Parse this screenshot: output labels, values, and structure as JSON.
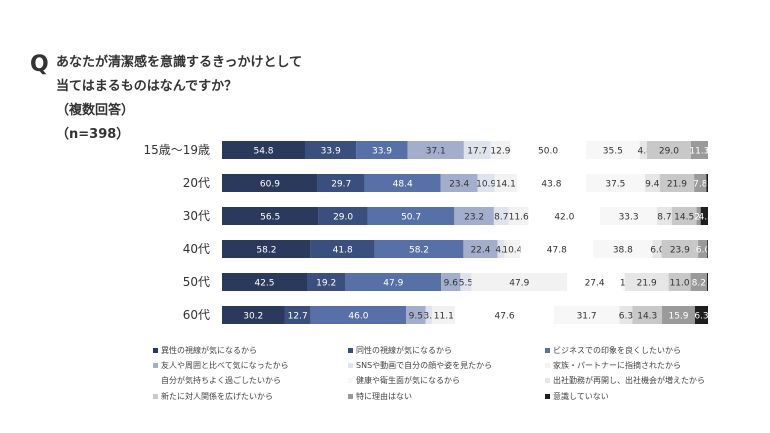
{
  "question": {
    "mark": "Q",
    "line1": "あなたが清潔感を意識するきっかけとして",
    "line2": "当てはまるものはなんですか？",
    "line3": "（複数回答）",
    "line4": "（n=398）"
  },
  "chart_data": {
    "type": "bar",
    "orientation": "horizontal",
    "stacked": true,
    "categories": [
      "15歳〜19歳",
      "20代",
      "30代",
      "40代",
      "50代",
      "60代"
    ],
    "series": [
      {
        "name": "異性の視線が気になるから",
        "color": "#2b3a5c",
        "label_color": "#ffffff",
        "values": [
          54.8,
          60.9,
          56.5,
          58.2,
          42.5,
          30.2
        ]
      },
      {
        "name": "同性の視線が気になるから",
        "color": "#3b4f7e",
        "label_color": "#ffffff",
        "values": [
          33.9,
          29.7,
          29.0,
          41.8,
          19.2,
          12.7
        ]
      },
      {
        "name": "ビジネスでの印象を良くしたいから",
        "color": "#5870a8",
        "label_color": "#ffffff",
        "values": [
          33.9,
          48.4,
          50.7,
          58.2,
          47.9,
          46.0
        ]
      },
      {
        "name": "友人や周囲と比べて気になったから",
        "color": "#a3aecd",
        "label_color": "#333333",
        "values": [
          37.1,
          23.4,
          23.2,
          22.4,
          9.6,
          9.5
        ]
      },
      {
        "name": "SNSや動画で自分の顔や姿を見たから",
        "color": "#dfe3ee",
        "label_color": "#333333",
        "values": [
          17.7,
          10.9,
          8.7,
          4.5,
          5.5,
          3.2
        ]
      },
      {
        "name": "家族・パートナーに指摘されたから",
        "color": "#f2f2f2",
        "label_color": "#333333",
        "values": [
          12.9,
          14.1,
          11.6,
          10.4,
          47.9,
          11.1
        ]
      },
      {
        "name": "自分が気持ちよく過ごしたいから",
        "color": "#ffffff",
        "label_color": "#333333",
        "values": [
          50.0,
          43.8,
          42.0,
          47.8,
          27.4,
          47.6
        ]
      },
      {
        "name": "健康や衛生面が気になるから",
        "color": "#f7f7f7",
        "label_color": "#333333",
        "values": [
          35.5,
          37.5,
          33.3,
          38.8,
          1.4,
          31.7
        ]
      },
      {
        "name": "出社勤務が再開し、出社機会が増えたから",
        "color": "#e6e6e6",
        "label_color": "#333333",
        "values": [
          4.8,
          9.4,
          8.7,
          6.0,
          21.9,
          6.3
        ]
      },
      {
        "name": "新たに対人関係を広げたいから",
        "color": "#c8c8c8",
        "label_color": "#333333",
        "values": [
          29.0,
          21.9,
          14.5,
          23.9,
          11.0,
          14.3
        ]
      },
      {
        "name": "特に理由はない",
        "color": "#9a9a9a",
        "label_color": "#ffffff",
        "values": [
          11.3,
          7.8,
          2.4,
          6.0,
          8.2,
          15.9
        ]
      },
      {
        "name": "意識していない",
        "color": "#1e1e1e",
        "label_color": "#ffffff",
        "values": [
          0.0,
          1.0,
          4.3,
          0.5,
          0.5,
          6.3
        ]
      }
    ],
    "value_labels": [
      [
        "54.8",
        "33.9",
        "33.9",
        "37.1",
        "17.7",
        "12.9",
        "50.0",
        "35.5",
        "4.8",
        "29.0",
        "11.3",
        "0.0"
      ],
      [
        "60.9",
        "29.7",
        "48.4",
        "23.4",
        "10.9",
        "14.1",
        "43.8",
        "37.5",
        "9.4",
        "21.9",
        "7.8",
        "1"
      ],
      [
        "56.5",
        "29.0",
        "50.7",
        "23.2",
        "8.7",
        "11.6",
        "42.0",
        "33.3",
        "8.7",
        "14.5",
        "2.4",
        "4.3"
      ],
      [
        "58.2",
        "41.8",
        "58.2",
        "22.4",
        "4.5",
        "10.4",
        "47.8",
        "38.8",
        "6.0",
        "23.9",
        "6.0",
        ""
      ],
      [
        "42.5",
        "19.2",
        "47.9",
        "9.6",
        "5.5",
        "47.9",
        "27.4",
        "1.4",
        "21.9",
        "11.0",
        "8.2",
        ""
      ],
      [
        "30.2",
        "12.7",
        "46.0",
        "9.5",
        "3.2",
        "11.1",
        "47.6",
        "31.7",
        "6.3",
        "14.3",
        "15.9",
        "6.3"
      ]
    ],
    "legend_position": "bottom",
    "grid": false
  }
}
